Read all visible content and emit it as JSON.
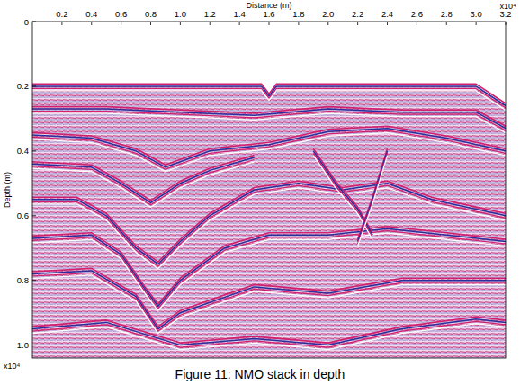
{
  "chart_data": {
    "type": "seismic_section",
    "title": "Figure 11: NMO stack in depth",
    "x_label": "Distance (m)",
    "y_label": "Depth (m)",
    "x_scale_label": "x10⁴",
    "y_scale_label": "x10⁴",
    "xlim": [
      0,
      3.2
    ],
    "ylim": [
      0,
      1.04
    ],
    "xticks": [
      0.2,
      0.4,
      0.6,
      0.8,
      {
        "value": 1,
        "label": "1.0"
      },
      1.2,
      1.4,
      1.6,
      1.8,
      {
        "value": 2,
        "label": "2.0"
      },
      2.2,
      2.4,
      2.6,
      2.8,
      {
        "value": 3,
        "label": "3.0"
      },
      3.2
    ],
    "yticks": [
      0,
      0.2,
      0.4,
      0.6,
      0.8,
      {
        "value": 1,
        "label": "1.0"
      }
    ],
    "horizons": [
      {
        "x": [
          0,
          1.55,
          1.6,
          1.65,
          3.0,
          3.2
        ],
        "depth": [
          0.2,
          0.2,
          0.23,
          0.2,
          0.2,
          0.26
        ]
      },
      {
        "x": [
          0,
          0.5,
          1.0,
          1.5,
          2.0,
          2.5,
          3.0,
          3.2
        ],
        "depth": [
          0.27,
          0.27,
          0.28,
          0.29,
          0.27,
          0.28,
          0.28,
          0.33
        ]
      },
      {
        "x": [
          0,
          0.4,
          0.7,
          0.9,
          1.2,
          1.6,
          2.0,
          2.4,
          2.8,
          3.2
        ],
        "depth": [
          0.35,
          0.36,
          0.4,
          0.45,
          0.4,
          0.38,
          0.34,
          0.33,
          0.36,
          0.4
        ]
      },
      {
        "x": [
          0,
          0.4,
          0.6,
          0.8,
          1.0,
          1.2,
          1.5
        ],
        "depth": [
          0.44,
          0.45,
          0.5,
          0.56,
          0.5,
          0.46,
          0.42
        ]
      },
      {
        "x": [
          0,
          0.3,
          0.5,
          0.7,
          0.85,
          1.0,
          1.2,
          1.5,
          1.8,
          2.1,
          2.4,
          2.7,
          3.0,
          3.2
        ],
        "depth": [
          0.55,
          0.55,
          0.6,
          0.7,
          0.75,
          0.68,
          0.6,
          0.52,
          0.5,
          0.52,
          0.5,
          0.55,
          0.58,
          0.6
        ]
      },
      {
        "x": [
          0,
          0.4,
          0.6,
          0.75,
          0.85,
          1.0,
          1.3,
          1.6,
          2.0,
          2.4,
          2.8,
          3.2
        ],
        "depth": [
          0.67,
          0.66,
          0.72,
          0.82,
          0.88,
          0.8,
          0.7,
          0.66,
          0.66,
          0.64,
          0.66,
          0.68
        ]
      },
      {
        "x": [
          0,
          0.4,
          0.7,
          0.85,
          1.0,
          1.5,
          2.0,
          2.5,
          3.0,
          3.2
        ],
        "depth": [
          0.78,
          0.77,
          0.85,
          0.95,
          0.9,
          0.82,
          0.84,
          0.8,
          0.8,
          0.8
        ]
      },
      {
        "x": [
          0,
          0.5,
          1.0,
          1.5,
          2.0,
          2.5,
          3.0,
          3.2
        ],
        "depth": [
          0.95,
          0.93,
          1.0,
          0.98,
          1.0,
          0.95,
          0.92,
          0.93
        ]
      },
      {
        "x": [
          1.9,
          2.05,
          2.2,
          2.3
        ],
        "depth": [
          0.4,
          0.5,
          0.58,
          0.66
        ]
      },
      {
        "x": [
          2.4,
          2.3,
          2.2
        ],
        "depth": [
          0.4,
          0.55,
          0.68
        ]
      }
    ]
  }
}
